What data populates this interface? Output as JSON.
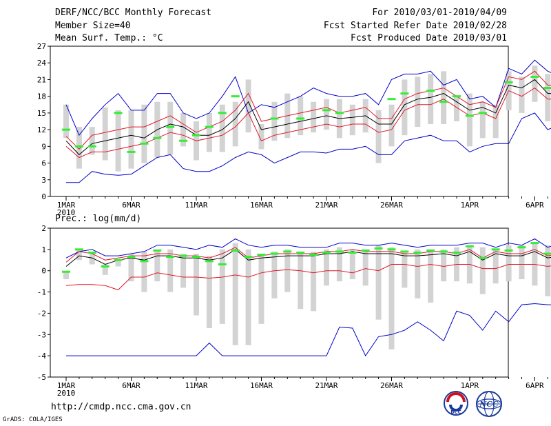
{
  "header": {
    "title": "DERF/NCC/BCC Monthly Forecast",
    "member_size": "Member Size=40",
    "forecast_period": "For 2010/03/01-2010/04/09",
    "started_date": "Fcst Started Refer Date 2010/02/28",
    "produced_date": "Fcst Produced Date 2010/03/01"
  },
  "footer": {
    "url": "http://cmdp.ncc.cma.gov.cn",
    "credit": "GrADS: COLA/IGES",
    "logo1_text": "BCC",
    "logo2_text": "NCC"
  },
  "colors": {
    "frame": "#000000",
    "box": "#d3d3d3",
    "mean": "#000000",
    "spread": "#e0182a",
    "extremes": "#0000cc",
    "observed": "#33ee33"
  },
  "chart_data": [
    {
      "type": "box-whisker-line",
      "title": "Mean Surf. Temp.: °C",
      "ylim": [
        0,
        27
      ],
      "yticks": [
        0,
        3,
        6,
        9,
        12,
        15,
        18,
        21,
        24,
        27
      ],
      "x_ticks": [
        {
          "day": 1,
          "label": "1MAR",
          "sublabel": "2010"
        },
        {
          "day": 6,
          "label": "6MAR"
        },
        {
          "day": 11,
          "label": "11MAR"
        },
        {
          "day": 16,
          "label": "16MAR"
        },
        {
          "day": 21,
          "label": "21MAR"
        },
        {
          "day": 26,
          "label": "26MAR"
        },
        {
          "day": 32,
          "label": "1APR"
        },
        {
          "day": 37,
          "label": "6APR"
        }
      ],
      "days": [
        1,
        2,
        3,
        4,
        5,
        6,
        7,
        8,
        9,
        10,
        11,
        12,
        13,
        14,
        15,
        16,
        17,
        18,
        19,
        20,
        21,
        22,
        23,
        24,
        25,
        26,
        27,
        28,
        29,
        30,
        31,
        32,
        33,
        34,
        35,
        36,
        37,
        38,
        39,
        40
      ],
      "box_low": [
        10.5,
        5.0,
        7.5,
        6.5,
        4.5,
        5.0,
        6.0,
        7.0,
        7.5,
        9.0,
        6.5,
        8.0,
        8.0,
        9.0,
        11.5,
        8.5,
        10.0,
        10.5,
        11.0,
        11.5,
        12.0,
        10.5,
        11.0,
        11.5,
        6.0,
        9.0,
        11.0,
        12.5,
        13.0,
        13.0,
        13.5,
        9.0,
        10.5,
        10.5,
        15.5,
        15.0,
        17.0,
        13.5,
        15.0,
        15.5
      ],
      "box_high": [
        16.5,
        12.5,
        12.5,
        16.0,
        15.5,
        15.5,
        16.5,
        17.0,
        17.0,
        15.0,
        13.5,
        15.0,
        16.5,
        17.0,
        21.0,
        13.0,
        17.0,
        18.5,
        18.0,
        17.0,
        17.5,
        17.5,
        16.5,
        17.5,
        15.5,
        16.5,
        21.0,
        21.5,
        22.0,
        22.5,
        18.0,
        18.5,
        17.0,
        16.5,
        22.5,
        21.5,
        23.5,
        22.0,
        21.0,
        21.0
      ],
      "ens_min": [
        2.5,
        2.5,
        4.5,
        4.0,
        3.8,
        4.0,
        5.5,
        7.0,
        7.5,
        5.0,
        4.5,
        4.5,
        5.5,
        7.0,
        8.0,
        7.5,
        6.0,
        7.0,
        8.0,
        8.0,
        7.8,
        8.5,
        8.5,
        9.0,
        7.5,
        7.5,
        10.0,
        10.5,
        11.0,
        10.0,
        10.0,
        8.0,
        9.0,
        9.5,
        9.5,
        14.0,
        15.0,
        12.0,
        13.0,
        13.2
      ],
      "ens_max": [
        16.5,
        11.0,
        14.0,
        16.5,
        18.5,
        15.5,
        15.5,
        18.5,
        18.5,
        15.0,
        14.0,
        15.0,
        18.0,
        21.5,
        15.0,
        16.5,
        16.0,
        17.0,
        18.0,
        19.5,
        18.5,
        18.0,
        18.0,
        18.5,
        16.5,
        21.0,
        22.0,
        22.0,
        22.5,
        20.0,
        21.0,
        17.5,
        18.0,
        16.0,
        23.0,
        22.0,
        24.5,
        22.5,
        21.5,
        21.5
      ],
      "mean": [
        10.0,
        7.5,
        9.5,
        10.0,
        10.5,
        11.0,
        10.5,
        12.0,
        13.0,
        12.5,
        11.0,
        11.0,
        12.0,
        14.0,
        17.0,
        12.0,
        12.5,
        13.0,
        13.5,
        14.0,
        14.5,
        14.0,
        14.2,
        14.5,
        13.0,
        13.0,
        16.5,
        17.5,
        17.8,
        18.5,
        17.0,
        15.5,
        16.0,
        15.0,
        20.0,
        19.5,
        21.0,
        18.5,
        18.5,
        18.5
      ],
      "spread_hi": [
        10.8,
        8.5,
        11.0,
        11.5,
        12.0,
        12.5,
        12.5,
        13.5,
        14.5,
        13.0,
        11.5,
        12.5,
        13.5,
        15.5,
        18.5,
        13.5,
        14.0,
        14.5,
        15.0,
        15.5,
        16.0,
        15.0,
        15.5,
        16.0,
        14.0,
        14.0,
        17.5,
        18.5,
        19.0,
        19.5,
        18.0,
        16.5,
        17.0,
        16.0,
        21.5,
        21.0,
        22.5,
        20.0,
        20.0,
        19.5
      ],
      "spread_lo": [
        9.0,
        7.0,
        8.0,
        8.0,
        8.5,
        9.0,
        9.5,
        10.5,
        11.5,
        11.0,
        10.0,
        10.5,
        11.0,
        12.5,
        15.0,
        10.0,
        11.0,
        11.5,
        12.0,
        12.5,
        13.0,
        12.5,
        13.0,
        13.0,
        11.5,
        12.0,
        15.5,
        16.5,
        16.5,
        17.5,
        16.0,
        14.5,
        15.0,
        14.0,
        19.0,
        18.0,
        19.5,
        17.5,
        17.5,
        17.5
      ],
      "observed": [
        12.0,
        9.0,
        9.0,
        null,
        15.0,
        8.0,
        9.5,
        10.5,
        12.5,
        10.0,
        11.0,
        12.5,
        15.0,
        18.0,
        null,
        null,
        14.0,
        null,
        14.0,
        null,
        15.5,
        15.0,
        null,
        null,
        null,
        17.5,
        18.5,
        null,
        19.0,
        17.0,
        18.0,
        14.5,
        15.0,
        null,
        20.5,
        null,
        21.5,
        19.5,
        20.0,
        20.0
      ]
    },
    {
      "type": "box-whisker-line",
      "title": "Prec.: log(mm/d)",
      "ylim": [
        -5,
        2
      ],
      "yticks": [
        -5,
        -4,
        -3,
        -2,
        -1,
        0,
        1,
        2
      ],
      "x_ticks": [
        {
          "day": 1,
          "label": "1MAR",
          "sublabel": "2010"
        },
        {
          "day": 6,
          "label": "6MAR"
        },
        {
          "day": 11,
          "label": "11MAR"
        },
        {
          "day": 16,
          "label": "16MAR"
        },
        {
          "day": 21,
          "label": "21MAR"
        },
        {
          "day": 26,
          "label": "26MAR"
        },
        {
          "day": 32,
          "label": "1APR"
        },
        {
          "day": 37,
          "label": "6APR"
        }
      ],
      "days": [
        1,
        2,
        3,
        4,
        5,
        6,
        7,
        8,
        9,
        10,
        11,
        12,
        13,
        14,
        15,
        16,
        17,
        18,
        19,
        20,
        21,
        22,
        23,
        24,
        25,
        26,
        27,
        28,
        29,
        30,
        31,
        32,
        33,
        34,
        35,
        36,
        37,
        38,
        39,
        40
      ],
      "box_low": [
        -0.4,
        0.5,
        0.3,
        -0.2,
        0.2,
        -0.5,
        -1.0,
        -0.5,
        -1.0,
        -0.8,
        -2.1,
        -2.7,
        -2.5,
        -3.5,
        -3.5,
        -2.5,
        -1.3,
        -1.0,
        -1.8,
        -1.9,
        -0.7,
        -0.5,
        -0.4,
        -0.7,
        -2.3,
        -3.7,
        -0.8,
        -1.3,
        -1.5,
        -0.5,
        -0.5,
        -0.6,
        -1.1,
        -0.6,
        -0.5,
        -0.4,
        -0.7,
        -1.2,
        -0.8,
        -0.3
      ],
      "box_high": [
        0.0,
        1.0,
        0.8,
        0.3,
        0.5,
        0.8,
        0.9,
        1.0,
        1.0,
        0.8,
        0.8,
        0.7,
        1.0,
        1.3,
        1.0,
        0.8,
        0.9,
        1.0,
        0.9,
        0.9,
        1.0,
        1.1,
        1.0,
        1.0,
        1.2,
        1.1,
        0.9,
        1.0,
        1.0,
        1.0,
        1.1,
        1.2,
        1.1,
        1.0,
        1.2,
        1.2,
        1.3,
        1.2,
        1.1,
        1.0
      ],
      "ens_min": [
        -4.0,
        -4.0,
        -4.0,
        -4.0,
        -4.0,
        -4.0,
        -4.0,
        -4.0,
        -4.0,
        -4.0,
        -4.0,
        -3.4,
        -4.0,
        -4.0,
        -4.0,
        -4.0,
        -4.0,
        -4.0,
        -4.0,
        -4.0,
        -4.0,
        -2.65,
        -2.7,
        -4.0,
        -3.1,
        -3.0,
        -2.8,
        -2.4,
        -2.8,
        -3.3,
        -1.9,
        -2.1,
        -2.8,
        -1.9,
        -2.4,
        -1.6,
        -1.55,
        -1.6,
        -1.6,
        -1.9
      ],
      "ens_max": [
        0.6,
        0.9,
        1.0,
        0.7,
        0.7,
        0.8,
        0.9,
        1.2,
        1.2,
        1.1,
        1.0,
        1.2,
        1.1,
        1.5,
        1.2,
        1.1,
        1.2,
        1.2,
        1.1,
        1.1,
        1.1,
        1.3,
        1.3,
        1.2,
        1.2,
        1.3,
        1.2,
        1.1,
        1.2,
        1.2,
        1.2,
        1.3,
        1.3,
        1.1,
        1.3,
        1.2,
        1.5,
        1.1,
        1.3,
        1.0
      ],
      "mean": [
        0.2,
        0.7,
        0.6,
        0.3,
        0.5,
        0.6,
        0.5,
        0.7,
        0.7,
        0.6,
        0.6,
        0.5,
        0.6,
        1.0,
        0.5,
        0.6,
        0.65,
        0.7,
        0.7,
        0.7,
        0.8,
        0.8,
        0.9,
        0.8,
        0.8,
        0.8,
        0.7,
        0.7,
        0.75,
        0.8,
        0.7,
        0.9,
        0.5,
        0.8,
        0.7,
        0.7,
        0.9,
        0.6,
        0.7,
        0.6
      ],
      "spread_hi": [
        0.4,
        0.9,
        0.8,
        0.5,
        0.6,
        0.7,
        0.7,
        0.8,
        0.8,
        0.7,
        0.7,
        0.6,
        0.8,
        1.1,
        0.6,
        0.7,
        0.8,
        0.8,
        0.8,
        0.8,
        0.9,
        0.9,
        1.0,
        0.9,
        0.9,
        0.9,
        0.8,
        0.8,
        0.9,
        0.9,
        0.8,
        1.0,
        0.6,
        0.9,
        0.8,
        0.8,
        1.0,
        0.7,
        0.8,
        0.7
      ],
      "spread_lo": [
        -0.7,
        -0.65,
        -0.65,
        -0.7,
        -0.9,
        -0.3,
        -0.3,
        -0.1,
        -0.2,
        -0.3,
        -0.3,
        -0.35,
        -0.3,
        -0.2,
        -0.3,
        -0.1,
        0.0,
        0.05,
        0.0,
        -0.1,
        0.0,
        0.0,
        -0.1,
        0.1,
        0.0,
        0.3,
        0.3,
        0.2,
        0.3,
        0.2,
        0.3,
        0.3,
        0.1,
        0.1,
        0.3,
        0.3,
        0.3,
        0.2,
        0.3,
        0.1
      ],
      "observed": [
        -0.05,
        1.0,
        0.85,
        0.2,
        0.5,
        0.65,
        0.45,
        0.95,
        0.65,
        0.7,
        0.65,
        0.45,
        0.3,
        0.95,
        0.65,
        0.75,
        0.8,
        0.9,
        0.85,
        0.75,
        0.85,
        0.9,
        0.85,
        0.95,
        1.05,
        1.0,
        0.9,
        0.85,
        0.95,
        0.9,
        0.85,
        1.15,
        0.6,
        1.0,
        0.95,
        1.1,
        1.3,
        0.8,
        1.0,
        0.95
      ]
    }
  ]
}
